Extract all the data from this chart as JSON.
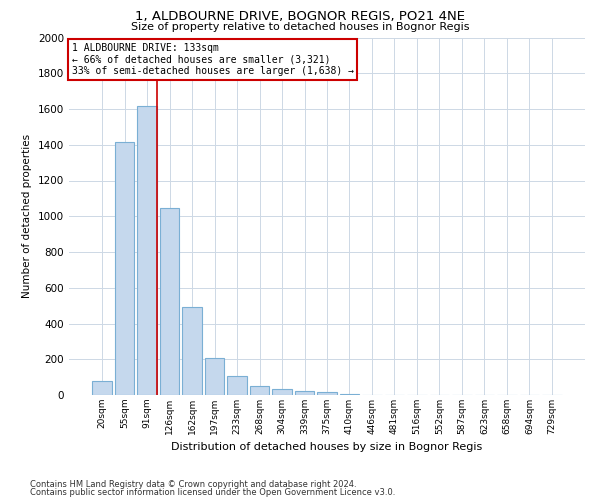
{
  "title1": "1, ALDBOURNE DRIVE, BOGNOR REGIS, PO21 4NE",
  "title2": "Size of property relative to detached houses in Bognor Regis",
  "xlabel": "Distribution of detached houses by size in Bognor Regis",
  "ylabel": "Number of detached properties",
  "categories": [
    "20sqm",
    "55sqm",
    "91sqm",
    "126sqm",
    "162sqm",
    "197sqm",
    "233sqm",
    "268sqm",
    "304sqm",
    "339sqm",
    "375sqm",
    "410sqm",
    "446sqm",
    "481sqm",
    "516sqm",
    "552sqm",
    "587sqm",
    "623sqm",
    "658sqm",
    "694sqm",
    "729sqm"
  ],
  "values": [
    80,
    1415,
    1615,
    1045,
    490,
    205,
    105,
    48,
    35,
    22,
    15,
    5,
    0,
    0,
    0,
    0,
    0,
    0,
    0,
    0,
    0
  ],
  "bar_color": "#c5d8ed",
  "bar_edge_color": "#7aafd4",
  "grid_color": "#cdd8e5",
  "annotation_text_line1": "1 ALDBOURNE DRIVE: 133sqm",
  "annotation_text_line2": "← 66% of detached houses are smaller (3,321)",
  "annotation_text_line3": "33% of semi-detached houses are larger (1,638) →",
  "annotation_box_color": "#ffffff",
  "annotation_box_edge_color": "#cc0000",
  "red_line_color": "#cc0000",
  "ylim": [
    0,
    2000
  ],
  "yticks": [
    0,
    200,
    400,
    600,
    800,
    1000,
    1200,
    1400,
    1600,
    1800,
    2000
  ],
  "footnote1": "Contains HM Land Registry data © Crown copyright and database right 2024.",
  "footnote2": "Contains public sector information licensed under the Open Government Licence v3.0.",
  "bg_color": "#ffffff"
}
